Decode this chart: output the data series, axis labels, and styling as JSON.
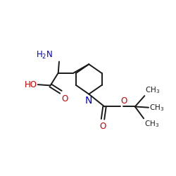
{
  "background_color": "#ffffff",
  "bond_color": "#1a1a1a",
  "n_color": "#0000cc",
  "o_color": "#cc0000",
  "line_width": 1.4,
  "font_size": 8.5,
  "fig_size": [
    2.5,
    2.5
  ],
  "dpi": 100,
  "xlim": [
    0,
    10
  ],
  "ylim": [
    2,
    8.5
  ]
}
